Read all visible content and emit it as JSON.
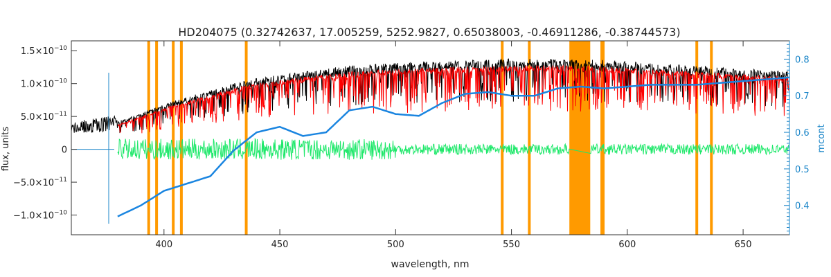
{
  "chart_data": {
    "type": "line",
    "title": "HD204075   (0.32742637, 17.005259, 5252.9827, 0.65038003, -0.46911286, -0.38744573)",
    "xlabel": "wavelength, nm",
    "ylabel": "flux, units",
    "ylabel_right": "mcont",
    "xlim": [
      360,
      670
    ],
    "ylim": [
      -1.3e-10,
      1.65e-10
    ],
    "ylim_right": [
      0.32,
      0.85
    ],
    "x_ticks": [
      400,
      450,
      500,
      550,
      600,
      650
    ],
    "x_tick_labels": [
      "400",
      "450",
      "500",
      "550",
      "600",
      "650"
    ],
    "y_ticks": [
      -1e-10,
      -5e-11,
      0,
      5e-11,
      1e-10,
      1.5e-10
    ],
    "y_tick_labels": [
      {
        "mant": "−1.0×10",
        "exp": "−10"
      },
      {
        "mant": "−5.0×10",
        "exp": "−11"
      },
      {
        "mant": "0",
        "exp": ""
      },
      {
        "mant": "5.0×10",
        "exp": "−11"
      },
      {
        "mant": "1.0×10",
        "exp": "−10"
      },
      {
        "mant": "1.5×10",
        "exp": "−10"
      }
    ],
    "y_ticks_right": [
      0.4,
      0.5,
      0.6,
      0.7,
      0.8
    ],
    "y_tick_labels_right": [
      "0.4",
      "0.5",
      "0.6",
      "0.7",
      "0.8"
    ],
    "masked_lines_nm": [
      393.4,
      396.8,
      404.0,
      407.5,
      435.5,
      546.0,
      557.7,
      589.0,
      589.6,
      630.0,
      636.3
    ],
    "masked_band_nm": [
      575,
      584
    ],
    "series": [
      {
        "key": "observed",
        "color": "#000000",
        "x": [
          360,
          370,
          380,
          390,
          400,
          410,
          420,
          430,
          440,
          450,
          460,
          470,
          480,
          490,
          500,
          510,
          520,
          530,
          540,
          550,
          560,
          570,
          580,
          590,
          600,
          610,
          620,
          630,
          640,
          650,
          660,
          670
        ],
        "y": [
          3.2e-11,
          3.6e-11,
          4e-11,
          5.2e-11,
          6.5e-11,
          7.5e-11,
          8.5e-11,
          9.5e-11,
          1.02e-10,
          1.07e-10,
          1.12e-10,
          1.16e-10,
          1.2e-10,
          1.22e-10,
          1.24e-10,
          1.26e-10,
          1.27e-10,
          1.28e-10,
          1.29e-10,
          1.3e-10,
          1.3e-10,
          1.3e-10,
          1.29e-10,
          1.28e-10,
          1.26e-10,
          1.24e-10,
          1.22e-10,
          1.2e-10,
          1.18e-10,
          1.16e-10,
          1.14e-10,
          1.12e-10
        ]
      },
      {
        "key": "model",
        "color": "#ff0000",
        "x": [
          380,
          390,
          400,
          410,
          420,
          430,
          440,
          450,
          460,
          470,
          480,
          490,
          500,
          510,
          520,
          530,
          540,
          550,
          560,
          570,
          580,
          590,
          600,
          610,
          620,
          630,
          640,
          650,
          660,
          670
        ],
        "y": [
          3.8e-11,
          5e-11,
          6.3e-11,
          7.3e-11,
          8.3e-11,
          9.3e-11,
          1e-10,
          1.05e-10,
          1.1e-10,
          1.14e-10,
          1.18e-10,
          1.2e-10,
          1.22e-10,
          1.24e-10,
          1.25e-10,
          1.26e-10,
          1.27e-10,
          1.28e-10,
          1.28e-10,
          1.28e-10,
          1.27e-10,
          1.26e-10,
          1.24e-10,
          1.22e-10,
          1.2e-10,
          1.18e-10,
          1.16e-10,
          1.14e-10,
          1.12e-10,
          1.1e-10
        ]
      },
      {
        "key": "residual",
        "color": "#1ee86a",
        "x": [
          380,
          670
        ],
        "y": [
          0,
          0
        ]
      },
      {
        "key": "continuum",
        "color": "#1a85e0",
        "axis": "right",
        "x": [
          380,
          390,
          400,
          410,
          420,
          430,
          440,
          450,
          460,
          470,
          480,
          490,
          500,
          510,
          520,
          530,
          540,
          550,
          560,
          570,
          580,
          590,
          600,
          610,
          620,
          630,
          640,
          650,
          660,
          670
        ],
        "y": [
          0.37,
          0.4,
          0.44,
          0.46,
          0.48,
          0.55,
          0.6,
          0.615,
          0.59,
          0.6,
          0.66,
          0.67,
          0.65,
          0.645,
          0.68,
          0.705,
          0.71,
          0.7,
          0.7,
          0.72,
          0.725,
          0.72,
          0.725,
          0.73,
          0.73,
          0.73,
          0.735,
          0.74,
          0.745,
          0.75
        ]
      }
    ],
    "grid": false,
    "legend": "none"
  }
}
